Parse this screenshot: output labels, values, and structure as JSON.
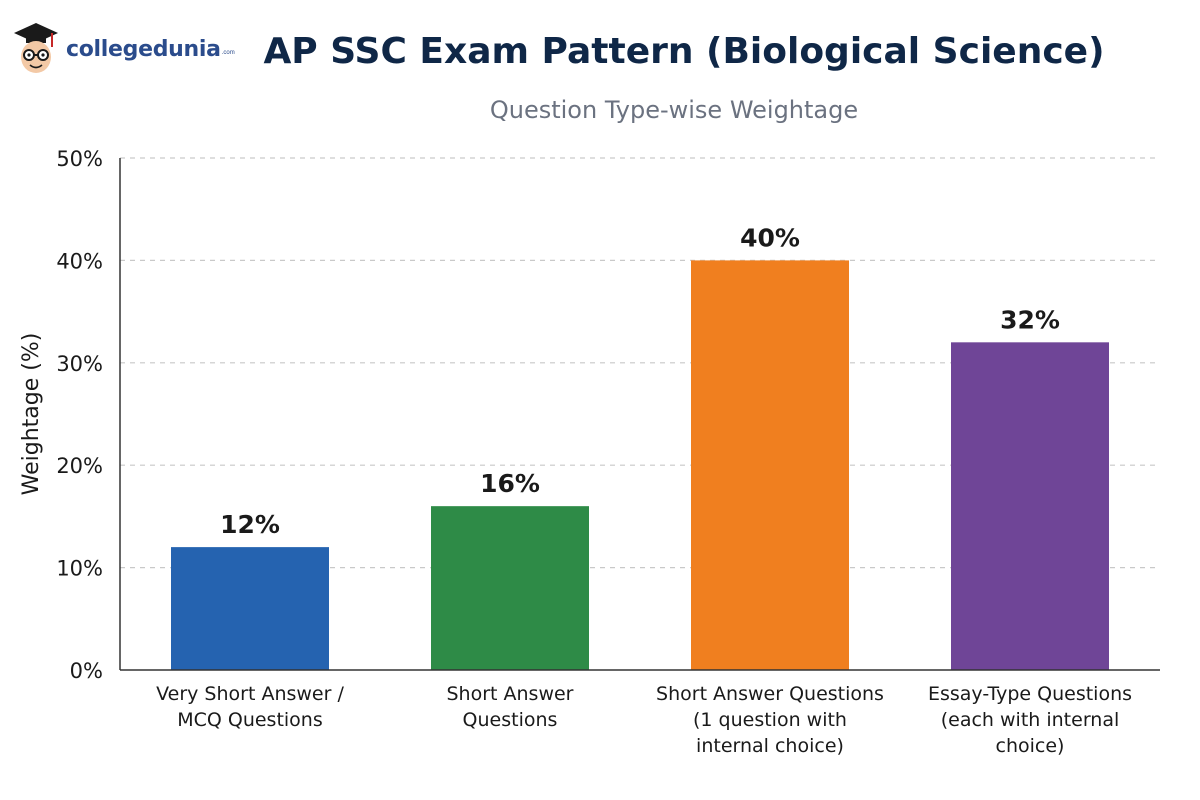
{
  "brand": {
    "name": "collegedunia",
    "suffix": ".com",
    "icon": "graduate-mascot-icon"
  },
  "chart_data": {
    "type": "bar",
    "title": "AP SSC Exam Pattern (Biological Science)",
    "subtitle": "Question Type-wise Weightage",
    "xlabel": "",
    "ylabel": "Weightage (%)",
    "ylim": [
      0,
      50
    ],
    "yticks": [
      "0%",
      "10%",
      "20%",
      "30%",
      "40%",
      "50%"
    ],
    "ytick_values": [
      0,
      10,
      20,
      30,
      40,
      50
    ],
    "grid": true,
    "categories": [
      [
        "Very Short Answer /",
        "MCQ Questions"
      ],
      [
        "Short Answer",
        "Questions"
      ],
      [
        "Short Answer Questions",
        "(1 question with",
        "internal choice)"
      ],
      [
        "Essay-Type Questions",
        "(each with internal",
        "choice)"
      ]
    ],
    "values": [
      12,
      16,
      40,
      32
    ],
    "data_labels": [
      "12%",
      "16%",
      "40%",
      "32%"
    ],
    "colors": [
      "#2563b0",
      "#2e8b47",
      "#f07f1f",
      "#6f4597"
    ]
  }
}
